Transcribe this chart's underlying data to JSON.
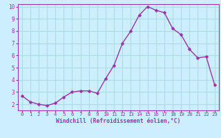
{
  "x": [
    0,
    1,
    2,
    3,
    4,
    5,
    6,
    7,
    8,
    9,
    10,
    11,
    12,
    13,
    14,
    15,
    16,
    17,
    18,
    19,
    20,
    21,
    22,
    23
  ],
  "y": [
    2.7,
    2.2,
    2.0,
    1.9,
    2.1,
    2.6,
    3.0,
    3.1,
    3.1,
    2.9,
    4.1,
    5.2,
    7.0,
    8.0,
    9.3,
    10.0,
    9.7,
    9.5,
    8.2,
    7.7,
    6.5,
    5.8,
    5.9,
    3.6
  ],
  "line_color": "#9933aa",
  "marker_color": "#9933aa",
  "bg_color": "#cceeff",
  "grid_color": "#aadddd",
  "xlabel": "Windchill (Refroidissement éolien,°C)",
  "xlabel_color": "#9933aa",
  "tick_color": "#9933aa",
  "ylim": [
    1.5,
    10.2
  ],
  "xlim": [
    -0.5,
    23.5
  ],
  "yticks": [
    2,
    3,
    4,
    5,
    6,
    7,
    8,
    9,
    10
  ],
  "xticks": [
    0,
    1,
    2,
    3,
    4,
    5,
    6,
    7,
    8,
    9,
    10,
    11,
    12,
    13,
    14,
    15,
    16,
    17,
    18,
    19,
    20,
    21,
    22,
    23
  ],
  "marker_size": 2.5,
  "line_width": 1.0
}
